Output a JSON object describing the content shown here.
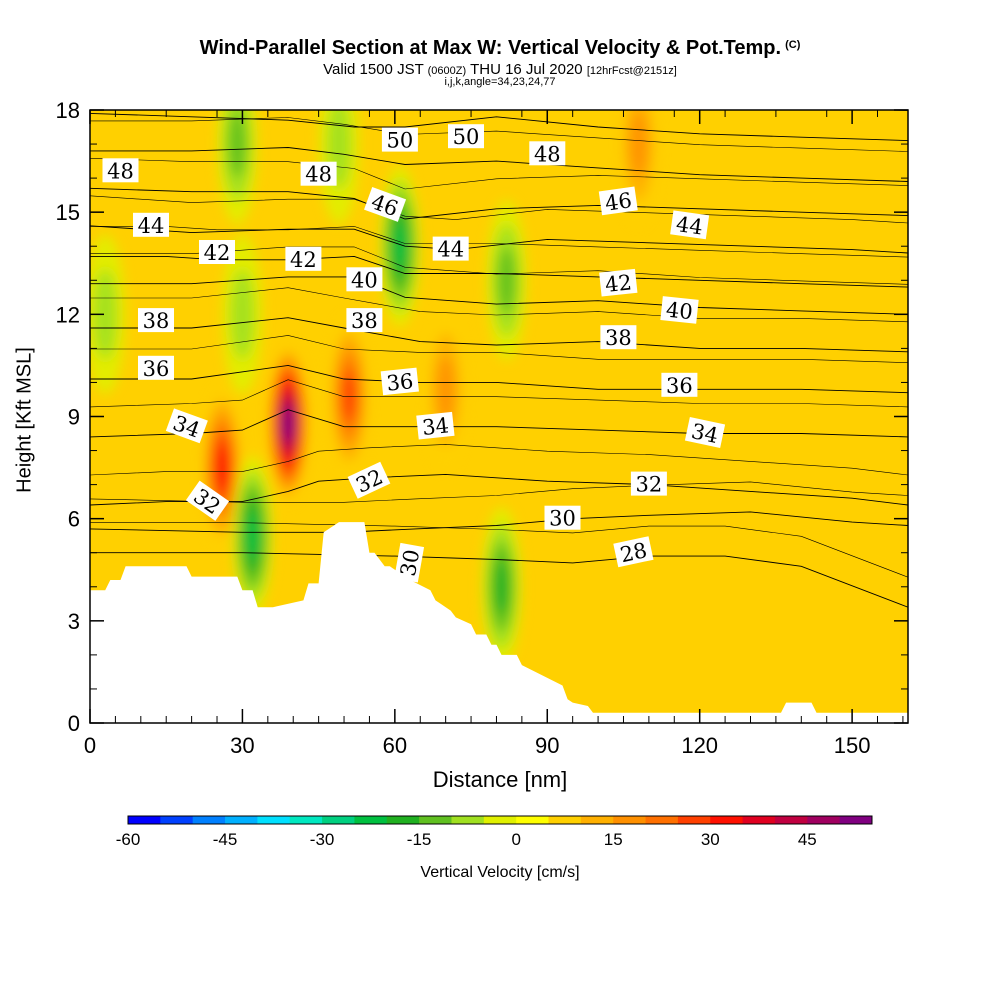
{
  "header": {
    "title": "Wind-Parallel Section at Max W: Vertical Velocity & Pot.Temp.",
    "copyright": "(C)",
    "valid_prefix": "Valid 1500 JST",
    "valid_utc": "(0600Z)",
    "valid_date": "THU 16 Jul 2020",
    "forecast": "[12hrFcst@2151z]",
    "params": "i,j,k,angle=34,23,24,77"
  },
  "chart_data": {
    "type": "heatmap",
    "title": "Wind-Parallel Section at Max W: Vertical Velocity & Pot.Temp.",
    "xlabel": "Distance [nm]",
    "ylabel": "Height [Kft MSL]",
    "xlim": [
      0,
      161
    ],
    "ylim": [
      0,
      18
    ],
    "xticks": [
      0,
      30,
      60,
      90,
      120,
      150
    ],
    "yticks": [
      0,
      3,
      6,
      9,
      12,
      15,
      18
    ],
    "grid": false,
    "colorbar": {
      "label": "Vertical Velocity [cm/s]",
      "ticks": [
        -60,
        -45,
        -30,
        -15,
        0,
        15,
        30,
        45
      ],
      "min": -60,
      "max": 55,
      "step": 5,
      "colors": [
        "#0000ff",
        "#0040ff",
        "#0080ff",
        "#00b0ff",
        "#00e0ff",
        "#00e8c0",
        "#00d080",
        "#00c040",
        "#20b020",
        "#60c020",
        "#a0e020",
        "#e0f000",
        "#ffff00",
        "#ffd000",
        "#ffb000",
        "#ff9000",
        "#ff7000",
        "#ff4000",
        "#ff1000",
        "#e00020",
        "#c00040",
        "#a00060",
        "#800080"
      ]
    },
    "velocity_features": [
      {
        "x": 26,
        "y": 7.5,
        "value": 30
      },
      {
        "x": 39,
        "y": 8.8,
        "value": 50
      },
      {
        "x": 51,
        "y": 9.6,
        "value": 25
      },
      {
        "x": 70,
        "y": 9.8,
        "value": 15
      },
      {
        "x": 32,
        "y": 5.5,
        "value": -25
      },
      {
        "x": 61,
        "y": 14,
        "value": -25
      },
      {
        "x": 81,
        "y": 4.0,
        "value": -20
      },
      {
        "x": 29,
        "y": 17,
        "value": -15
      },
      {
        "x": 49,
        "y": 17,
        "value": -10
      },
      {
        "x": 82,
        "y": 13,
        "value": -15
      },
      {
        "x": 3,
        "y": 12,
        "value": -8
      },
      {
        "x": 30,
        "y": 12,
        "value": -10
      },
      {
        "x": 108,
        "y": 17,
        "value": 15
      }
    ],
    "terrain_profile": {
      "x": [
        0,
        3,
        4,
        6,
        7,
        19,
        20,
        29,
        30,
        32,
        33,
        36,
        42,
        43,
        45,
        46,
        49,
        54,
        55,
        56,
        58,
        59,
        63,
        67,
        68,
        69,
        71,
        72,
        75,
        76,
        78,
        79,
        80,
        81,
        84,
        85,
        93,
        94,
        95,
        98,
        99,
        136,
        137,
        142,
        143,
        161
      ],
      "y": [
        3.9,
        3.9,
        4.2,
        4.2,
        4.6,
        4.6,
        4.3,
        4.3,
        3.9,
        3.9,
        3.4,
        3.4,
        3.6,
        4.1,
        4.1,
        5.6,
        5.9,
        5.9,
        5.0,
        5.0,
        4.6,
        4.6,
        4.2,
        3.9,
        3.6,
        3.5,
        3.3,
        3.1,
        2.9,
        2.6,
        2.6,
        2.3,
        2.3,
        2.0,
        2.0,
        1.7,
        1.1,
        0.7,
        0.6,
        0.5,
        0.3,
        0.3,
        0.6,
        0.6,
        0.3,
        0.3
      ]
    },
    "theta_contours": [
      {
        "level": 28,
        "label": "28",
        "x": [
          0,
          30,
          60,
          80,
          95,
          110,
          125,
          140,
          161
        ],
        "y": [
          5.0,
          5.0,
          4.9,
          4.8,
          4.7,
          4.9,
          4.9,
          4.6,
          3.4
        ]
      },
      {
        "level": 30,
        "label": "30",
        "x": [
          0,
          30,
          50,
          64,
          80,
          95,
          110,
          130,
          150,
          161
        ],
        "y": [
          5.7,
          5.6,
          5.6,
          5.7,
          5.8,
          6.0,
          6.1,
          6.2,
          5.9,
          5.8
        ]
      },
      {
        "level": 32,
        "label": "32",
        "x": [
          0,
          15,
          30,
          39,
          45,
          55,
          70,
          90,
          110,
          130,
          150,
          161
        ],
        "y": [
          6.4,
          6.5,
          6.5,
          6.8,
          7.1,
          7.2,
          7.3,
          7.1,
          7.0,
          6.8,
          6.6,
          6.4
        ]
      },
      {
        "level": 34,
        "label": "34",
        "x": [
          0,
          20,
          30,
          39,
          50,
          65,
          80,
          100,
          120,
          140,
          161
        ],
        "y": [
          8.4,
          8.5,
          8.6,
          9.2,
          8.7,
          8.7,
          8.7,
          8.6,
          8.5,
          8.5,
          8.4
        ]
      },
      {
        "level": 36,
        "label": "36",
        "x": [
          0,
          20,
          39,
          50,
          65,
          80,
          100,
          120,
          140,
          161
        ],
        "y": [
          10.1,
          10.1,
          10.5,
          10.1,
          10.0,
          10.0,
          9.8,
          9.8,
          9.8,
          9.7
        ]
      },
      {
        "level": 38,
        "label": "38",
        "x": [
          0,
          20,
          39,
          50,
          65,
          80,
          100,
          120,
          140,
          161
        ],
        "y": [
          11.6,
          11.6,
          11.9,
          11.6,
          11.2,
          11.1,
          11.2,
          11.0,
          11.0,
          10.9
        ]
      },
      {
        "level": 40,
        "label": "40",
        "x": [
          0,
          20,
          39,
          52,
          62,
          80,
          100,
          120,
          140,
          161
        ],
        "y": [
          12.9,
          12.9,
          13.1,
          13.1,
          12.5,
          12.3,
          12.4,
          12.2,
          12.1,
          12.0
        ]
      },
      {
        "level": 42,
        "label": "42",
        "x": [
          0,
          15,
          25,
          39,
          52,
          62,
          80,
          100,
          120,
          140,
          161
        ],
        "y": [
          13.7,
          13.7,
          13.6,
          13.6,
          13.7,
          13.2,
          13.2,
          13.1,
          13.0,
          12.9,
          12.8
        ]
      },
      {
        "level": 44,
        "label": "44",
        "x": [
          0,
          20,
          39,
          52,
          62,
          72,
          90,
          110,
          130,
          150,
          161
        ],
        "y": [
          14.6,
          14.4,
          14.5,
          14.5,
          14.0,
          13.9,
          14.2,
          14.1,
          14.0,
          13.9,
          13.8
        ]
      },
      {
        "level": 46,
        "label": "46",
        "x": [
          0,
          20,
          39,
          52,
          62,
          80,
          100,
          120,
          140,
          161
        ],
        "y": [
          15.7,
          15.6,
          15.6,
          15.4,
          14.8,
          15.1,
          15.2,
          15.1,
          15.0,
          14.9
        ]
      },
      {
        "level": 48,
        "label": "48",
        "x": [
          0,
          20,
          39,
          50,
          62,
          80,
          100,
          120,
          140,
          161
        ],
        "y": [
          16.8,
          16.8,
          16.9,
          16.7,
          16.4,
          16.5,
          16.3,
          16.1,
          16.0,
          15.9
        ]
      },
      {
        "level": 50,
        "label": "50",
        "x": [
          0,
          20,
          39,
          52,
          62,
          80,
          100,
          120,
          140,
          161
        ],
        "y": [
          17.9,
          17.8,
          17.7,
          17.5,
          17.5,
          17.8,
          17.5,
          17.3,
          17.2,
          17.1
        ]
      }
    ],
    "contour_labels": [
      {
        "text": "48",
        "x": 6,
        "y": 16.2,
        "angle": 0
      },
      {
        "text": "48",
        "x": 45,
        "y": 16.1,
        "angle": 0
      },
      {
        "text": "50",
        "x": 61,
        "y": 17.1,
        "angle": 0
      },
      {
        "text": "50",
        "x": 74,
        "y": 17.2,
        "angle": 0
      },
      {
        "text": "48",
        "x": 90,
        "y": 16.7,
        "angle": 0
      },
      {
        "text": "46",
        "x": 58,
        "y": 15.2,
        "angle": 20
      },
      {
        "text": "46",
        "x": 104,
        "y": 15.3,
        "angle": -8
      },
      {
        "text": "44",
        "x": 12,
        "y": 14.6,
        "angle": 0
      },
      {
        "text": "44",
        "x": 118,
        "y": 14.6,
        "angle": 8
      },
      {
        "text": "44",
        "x": 71,
        "y": 13.9,
        "angle": 0
      },
      {
        "text": "42",
        "x": 25,
        "y": 13.8,
        "angle": 0
      },
      {
        "text": "42",
        "x": 42,
        "y": 13.6,
        "angle": 0
      },
      {
        "text": "42",
        "x": 104,
        "y": 12.9,
        "angle": -6
      },
      {
        "text": "40",
        "x": 54,
        "y": 13.0,
        "angle": 0
      },
      {
        "text": "40",
        "x": 116,
        "y": 12.1,
        "angle": 6
      },
      {
        "text": "38",
        "x": 13,
        "y": 11.8,
        "angle": 0
      },
      {
        "text": "38",
        "x": 54,
        "y": 11.8,
        "angle": 0
      },
      {
        "text": "38",
        "x": 104,
        "y": 11.3,
        "angle": 0
      },
      {
        "text": "36",
        "x": 13,
        "y": 10.4,
        "angle": 0
      },
      {
        "text": "36",
        "x": 61,
        "y": 10.0,
        "angle": -6
      },
      {
        "text": "36",
        "x": 116,
        "y": 9.9,
        "angle": 0
      },
      {
        "text": "34",
        "x": 19,
        "y": 8.7,
        "angle": 20
      },
      {
        "text": "34",
        "x": 68,
        "y": 8.7,
        "angle": -6
      },
      {
        "text": "34",
        "x": 121,
        "y": 8.5,
        "angle": 12
      },
      {
        "text": "32",
        "x": 23,
        "y": 6.5,
        "angle": 35
      },
      {
        "text": "32",
        "x": 55,
        "y": 7.1,
        "angle": -25
      },
      {
        "text": "32",
        "x": 110,
        "y": 7.0,
        "angle": 0
      },
      {
        "text": "30",
        "x": 93,
        "y": 6.0,
        "angle": 0
      },
      {
        "text": "30",
        "x": 63,
        "y": 4.7,
        "angle": -80
      },
      {
        "text": "28",
        "x": 107,
        "y": 5.0,
        "angle": -12
      }
    ]
  }
}
